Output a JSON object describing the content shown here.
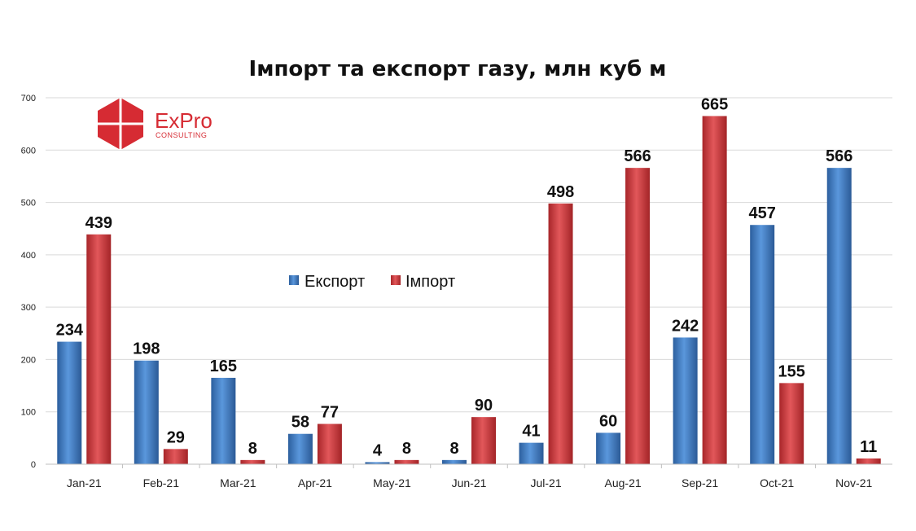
{
  "logo": {
    "name": "ExPro",
    "subtitle": "CONSULTING"
  },
  "chart_data": {
    "type": "bar",
    "title": "Імпорт та експорт газу, млн куб м",
    "categories": [
      "Jan-21",
      "Feb-21",
      "Mar-21",
      "Apr-21",
      "May-21",
      "Jun-21",
      "Jul-21",
      "Aug-21",
      "Sep-21",
      "Oct-21",
      "Nov-21"
    ],
    "series": [
      {
        "name": "Експорт",
        "color": "#3b78c3",
        "values": [
          234,
          198,
          165,
          58,
          4,
          8,
          41,
          60,
          242,
          457,
          566
        ]
      },
      {
        "name": "Імпорт",
        "color": "#d9393d",
        "values": [
          439,
          29,
          8,
          77,
          8,
          90,
          498,
          566,
          665,
          155,
          11
        ]
      }
    ],
    "ylim": [
      0,
      700
    ],
    "yticks": [
      0,
      100,
      200,
      300,
      400,
      500,
      600,
      700
    ],
    "grid": true,
    "legend_position": "center-left",
    "data_labels": true
  }
}
